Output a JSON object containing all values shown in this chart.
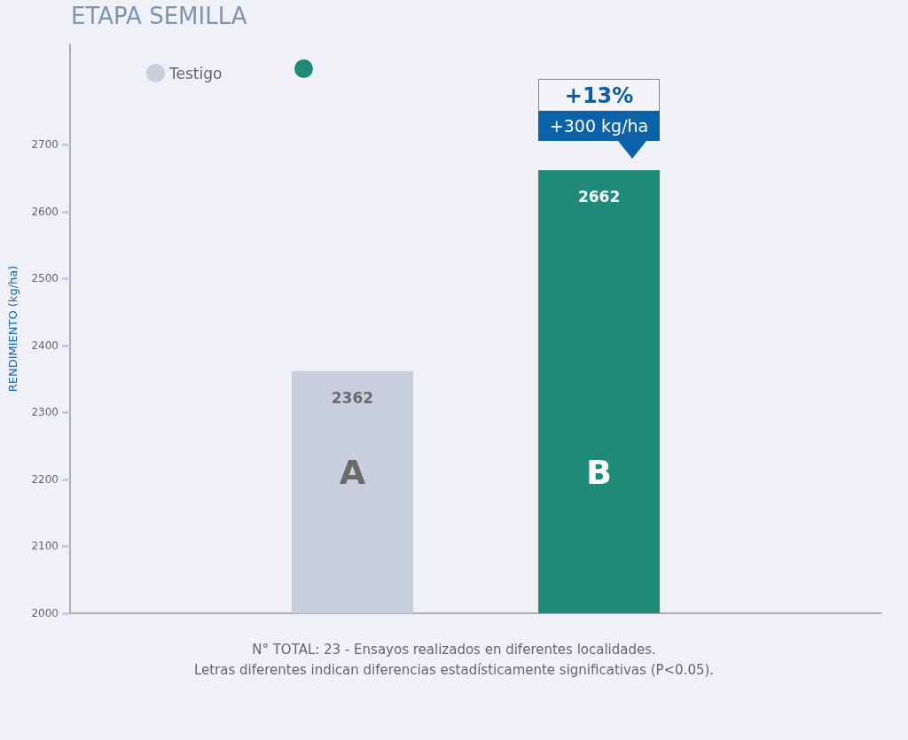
{
  "chart_data": {
    "type": "bar",
    "title": "ETAPA SEMILLA",
    "ylabel": "RENDIMIENTO (kg/ha)",
    "categories": [
      null
    ],
    "series": [
      {
        "name": "Testigo",
        "color": "#c9cedf",
        "values": [
          2362
        ]
      },
      {
        "color": "#1f8a77",
        "values": [
          2662
        ]
      }
    ],
    "ylim": [
      2000,
      2850
    ],
    "yticks": [
      2000,
      2100,
      2200,
      2300,
      2400,
      2500,
      2600,
      2700
    ],
    "data_labels": true,
    "legend": "top left",
    "annotations": [
      "A",
      "B",
      "+13%",
      "+300 kg/ha",
      "N° TOTAL: 23 - Ensayos realizados en diferentes localidades.",
      "Letras diferentes indican diferencias estadísticamente significativas (P<0.05)."
    ]
  }
}
